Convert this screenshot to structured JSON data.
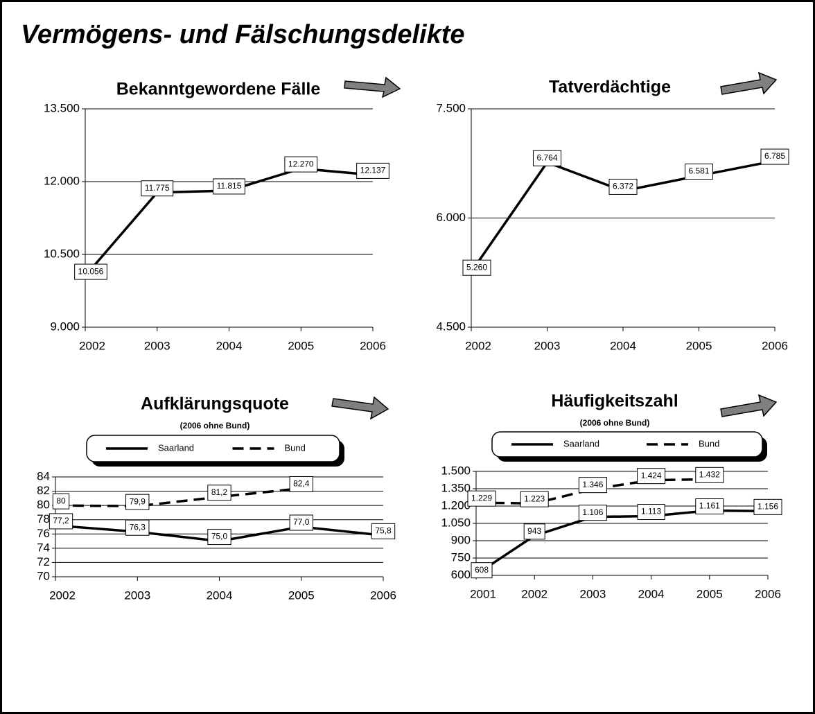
{
  "title": "Vermögens- und Fälschungsdelikte",
  "chart_data": [
    {
      "type": "line",
      "title": "Bekanntgewordene Fälle",
      "categories": [
        "2002",
        "2003",
        "2004",
        "2005",
        "2006"
      ],
      "values": [
        10056,
        11775,
        11815,
        12270,
        12137
      ],
      "value_labels": [
        "10.056",
        "11.775",
        "11.815",
        "12.270",
        "12.137"
      ],
      "color": "#000000",
      "ylim": [
        9000,
        13500
      ],
      "yticks": [
        {
          "value": 9000,
          "label": "9.000"
        },
        {
          "value": 10500,
          "label": "10.500"
        },
        {
          "value": 12000,
          "label": "12.000"
        },
        {
          "value": 13500,
          "label": "13.500"
        }
      ],
      "grid": true
    },
    {
      "type": "line",
      "title": "Tatverdächtige",
      "categories": [
        "2002",
        "2003",
        "2004",
        "2005",
        "2006"
      ],
      "values": [
        5260,
        6764,
        6372,
        6581,
        6785
      ],
      "value_labels": [
        "5.260",
        "6.764",
        "6.372",
        "6.581",
        "6.785"
      ],
      "color": "#000000",
      "ylim": [
        4500,
        7500
      ],
      "yticks": [
        {
          "value": 4500,
          "label": "4.500"
        },
        {
          "value": 6000,
          "label": "6.000"
        },
        {
          "value": 7500,
          "label": "7.500"
        }
      ],
      "grid": true
    },
    {
      "type": "line",
      "title": "Aufklärungsquote",
      "subtitle": "(2006 ohne Bund)",
      "categories": [
        "2002",
        "2003",
        "2004",
        "2005",
        "2006"
      ],
      "series": [
        {
          "name": "Saarland",
          "color": "#000000",
          "dash": false,
          "values": [
            77.2,
            76.3,
            75.0,
            77.0,
            75.8
          ],
          "value_labels": [
            "77,2",
            "76,3",
            "75,0",
            "77,0",
            "75,8"
          ]
        },
        {
          "name": "Bund",
          "color": "#000000",
          "dash": true,
          "values": [
            80,
            79.9,
            81.2,
            82.4,
            null
          ],
          "value_labels": [
            "80",
            "79,9",
            "81,2",
            "82,4",
            null
          ]
        }
      ],
      "ylim": [
        70,
        84
      ],
      "yticks": [
        70,
        72,
        74,
        76,
        78,
        80,
        82,
        84
      ],
      "grid": true,
      "legend": "top"
    },
    {
      "type": "line",
      "title": "Häufigkeitszahl",
      "subtitle": "(2006 ohne Bund)",
      "categories": [
        "2001",
        "2002",
        "2003",
        "2004",
        "2005",
        "2006"
      ],
      "series": [
        {
          "name": "Saarland",
          "color": "#000000",
          "dash": false,
          "values": [
            608,
            943,
            1106,
            1113,
            1161,
            1156
          ],
          "value_labels": [
            "608",
            "943",
            "1.106",
            "1.113",
            "1.161",
            "1.156"
          ]
        },
        {
          "name": "Bund",
          "color": "#000000",
          "dash": true,
          "values": [
            1229,
            1223,
            1346,
            1424,
            1432,
            null
          ],
          "value_labels": [
            "1.229",
            "1.223",
            "1.346",
            "1.424",
            "1.432",
            null
          ]
        }
      ],
      "ylim": [
        600,
        1500
      ],
      "yticks": [
        600,
        750,
        900,
        {
          "value": 1050,
          "label": "1.050"
        },
        {
          "value": 1200,
          "label": "1.200"
        },
        {
          "value": 1350,
          "label": "1.350"
        },
        {
          "value": 1500,
          "label": "1.500"
        }
      ],
      "grid": true,
      "legend": "top"
    }
  ]
}
